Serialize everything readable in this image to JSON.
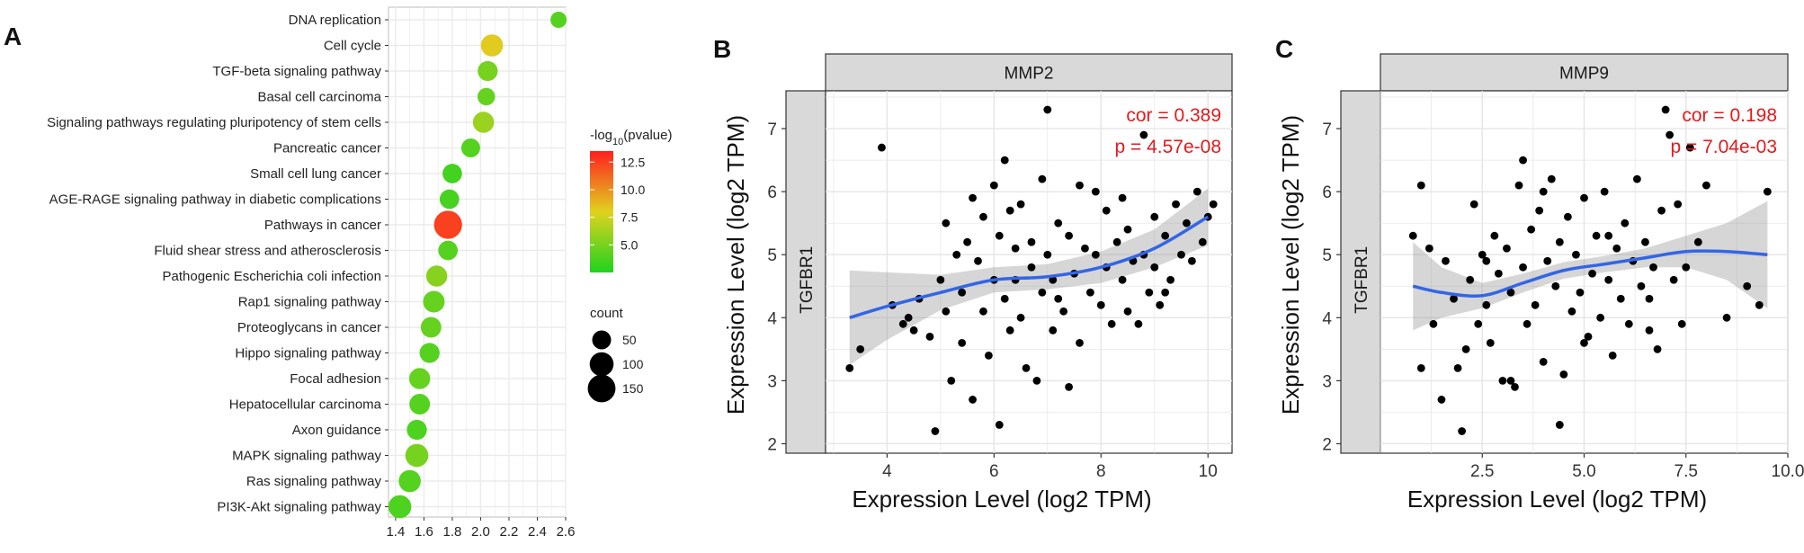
{
  "panel_labels": [
    "A",
    "B",
    "C"
  ],
  "chart_data": [
    {
      "type": "scatter",
      "id": "A",
      "categories": [
        "DNA replication",
        "Cell cycle",
        "TGF-beta signaling pathway",
        "Basal cell carcinoma",
        "Signaling pathways regulating pluripotency of stem cells",
        "Pancreatic cancer",
        "Small cell lung cancer",
        "AGE-RAGE signaling pathway in diabetic complications",
        "Pathways in cancer",
        "Fluid shear stress and atherosclerosis",
        "Pathogenic Escherichia coli infection",
        "Rap1 signaling pathway",
        "Proteoglycans in cancer",
        "Hippo signaling pathway",
        "Focal adhesion",
        "Hepatocellular carcinoma",
        "Axon guidance",
        "MAPK signaling pathway",
        "Ras signaling pathway",
        "PI3K-Akt signaling pathway"
      ],
      "x": [
        2.55,
        2.08,
        2.05,
        2.04,
        2.02,
        1.93,
        1.8,
        1.78,
        1.77,
        1.77,
        1.69,
        1.67,
        1.65,
        1.64,
        1.57,
        1.57,
        1.55,
        1.55,
        1.5,
        1.43
      ],
      "count": [
        30,
        80,
        60,
        40,
        70,
        50,
        55,
        55,
        155,
        55,
        70,
        75,
        65,
        60,
        70,
        65,
        60,
        90,
        80,
        90
      ],
      "neg_log10_pvalue": [
        4.0,
        8.2,
        5.0,
        4.5,
        6.0,
        4.0,
        3.5,
        3.6,
        12.5,
        4.0,
        5.5,
        4.5,
        4.5,
        4.0,
        4.5,
        4.0,
        3.8,
        5.0,
        4.0,
        3.8
      ],
      "xlim": [
        1.35,
        2.6
      ],
      "xticks": [
        "1.4",
        "1.6",
        "1.8",
        "2.0",
        "2.2",
        "2.4",
        "2.6"
      ],
      "color_legend": {
        "title_pre": "-log",
        "title_sub": "10",
        "title_post": "(pvalue)",
        "ticks": [
          "12.5",
          "10.0",
          "7.5",
          "5.0"
        ],
        "range": [
          2.5,
          13.5
        ],
        "colors": [
          "#1fd21f",
          "#e0d21f",
          "#ff1f1f"
        ]
      },
      "size_legend": {
        "title": "count",
        "items": [
          50,
          100,
          150
        ],
        "labels": [
          "50",
          "100",
          "150"
        ]
      },
      "grid": true
    },
    {
      "type": "scatter",
      "id": "B",
      "strip_top": "MMP2",
      "strip_side": "TGFBR1",
      "xlabel": "Expression Level (log2 TPM)",
      "ylabel": "Expression Level (log2 TPM)",
      "xlim": [
        2.85,
        10.45
      ],
      "ylim": [
        1.85,
        7.6
      ],
      "xticks": [
        4,
        6,
        8,
        10
      ],
      "xtick_labels": [
        "4",
        "6",
        "8",
        "10"
      ],
      "yticks": [
        2,
        3,
        4,
        5,
        6,
        7
      ],
      "ytick_labels": [
        "2",
        "3",
        "4",
        "5",
        "6",
        "7"
      ],
      "annotation": [
        "cor = 0.389",
        "p = 4.57e-08"
      ],
      "smooth": {
        "x": [
          3.3,
          4.0,
          5.0,
          6.0,
          7.0,
          8.0,
          9.0,
          10.0
        ],
        "y": [
          4.0,
          4.18,
          4.4,
          4.6,
          4.65,
          4.8,
          5.1,
          5.6
        ]
      },
      "smooth_ci_upper": [
        4.75,
        4.72,
        4.68,
        4.8,
        4.85,
        5.05,
        5.4,
        6.05
      ],
      "smooth_ci_lower": [
        3.25,
        3.65,
        4.12,
        4.4,
        4.45,
        4.55,
        4.8,
        5.15
      ],
      "points": [
        [
          3.3,
          3.2
        ],
        [
          3.5,
          3.5
        ],
        [
          3.9,
          6.7
        ],
        [
          4.1,
          4.2
        ],
        [
          4.3,
          3.9
        ],
        [
          4.5,
          3.8
        ],
        [
          4.6,
          4.3
        ],
        [
          4.8,
          3.7
        ],
        [
          4.9,
          2.2
        ],
        [
          5.0,
          4.6
        ],
        [
          5.1,
          5.5
        ],
        [
          5.1,
          4.1
        ],
        [
          5.2,
          3.0
        ],
        [
          5.3,
          5.0
        ],
        [
          5.4,
          4.4
        ],
        [
          5.4,
          3.6
        ],
        [
          5.5,
          5.2
        ],
        [
          5.6,
          2.7
        ],
        [
          5.7,
          4.9
        ],
        [
          5.8,
          4.1
        ],
        [
          5.8,
          5.6
        ],
        [
          5.9,
          3.4
        ],
        [
          6.0,
          6.1
        ],
        [
          6.0,
          4.6
        ],
        [
          6.1,
          5.3
        ],
        [
          6.1,
          2.3
        ],
        [
          6.2,
          6.5
        ],
        [
          6.2,
          4.3
        ],
        [
          6.3,
          3.8
        ],
        [
          6.4,
          5.1
        ],
        [
          6.4,
          4.6
        ],
        [
          6.5,
          4.0
        ],
        [
          6.5,
          5.8
        ],
        [
          6.6,
          3.2
        ],
        [
          6.7,
          4.8
        ],
        [
          6.7,
          5.2
        ],
        [
          6.8,
          3.0
        ],
        [
          6.9,
          4.4
        ],
        [
          6.9,
          6.2
        ],
        [
          7.0,
          7.3
        ],
        [
          7.0,
          5.0
        ],
        [
          7.1,
          3.8
        ],
        [
          7.1,
          4.6
        ],
        [
          7.2,
          5.5
        ],
        [
          7.3,
          4.1
        ],
        [
          7.4,
          2.9
        ],
        [
          7.4,
          5.3
        ],
        [
          7.5,
          4.7
        ],
        [
          7.6,
          3.6
        ],
        [
          7.7,
          5.1
        ],
        [
          7.8,
          4.4
        ],
        [
          7.9,
          6.0
        ],
        [
          7.9,
          5.0
        ],
        [
          8.0,
          4.2
        ],
        [
          8.1,
          5.7
        ],
        [
          8.1,
          4.8
        ],
        [
          8.2,
          3.9
        ],
        [
          8.3,
          5.2
        ],
        [
          8.4,
          4.6
        ],
        [
          8.5,
          4.1
        ],
        [
          8.5,
          5.4
        ],
        [
          8.6,
          4.9
        ],
        [
          8.7,
          3.9
        ],
        [
          8.8,
          6.9
        ],
        [
          8.8,
          5.0
        ],
        [
          8.9,
          4.4
        ],
        [
          9.0,
          5.6
        ],
        [
          9.0,
          4.8
        ],
        [
          9.1,
          4.2
        ],
        [
          9.2,
          5.3
        ],
        [
          9.3,
          4.6
        ],
        [
          9.4,
          5.8
        ],
        [
          9.5,
          5.0
        ],
        [
          9.6,
          5.5
        ],
        [
          9.7,
          4.9
        ],
        [
          9.8,
          6.0
        ],
        [
          9.9,
          5.2
        ],
        [
          10.0,
          5.6
        ],
        [
          10.1,
          5.8
        ],
        [
          4.4,
          4.0
        ],
        [
          5.6,
          5.9
        ],
        [
          6.3,
          5.7
        ],
        [
          7.2,
          4.3
        ],
        [
          7.6,
          6.1
        ],
        [
          8.4,
          5.9
        ],
        [
          9.2,
          4.4
        ]
      ],
      "grid": true
    },
    {
      "type": "scatter",
      "id": "C",
      "strip_top": "MMP9",
      "strip_side": "TGFBR1",
      "xlabel": "Expression Level (log2 TPM)",
      "ylabel": "Expression Level (log2 TPM)",
      "xlim": [
        0.0,
        10.0
      ],
      "ylim": [
        1.85,
        7.6
      ],
      "xticks": [
        2.5,
        5.0,
        7.5,
        10.0
      ],
      "xtick_labels": [
        "2.5",
        "5.0",
        "7.5",
        "10.0"
      ],
      "yticks": [
        2,
        3,
        4,
        5,
        6,
        7
      ],
      "ytick_labels": [
        "2",
        "3",
        "4",
        "5",
        "6",
        "7"
      ],
      "annotation": [
        "cor = 0.198",
        "p = 7.04e-03"
      ],
      "smooth": {
        "x": [
          0.8,
          1.5,
          2.5,
          3.5,
          4.5,
          5.5,
          6.5,
          7.5,
          8.5,
          9.5
        ],
        "y": [
          4.5,
          4.4,
          4.35,
          4.55,
          4.75,
          4.85,
          4.95,
          5.05,
          5.05,
          5.0
        ]
      },
      "smooth_ci_upper": [
        5.2,
        4.8,
        4.55,
        4.7,
        4.88,
        4.98,
        5.1,
        5.3,
        5.5,
        5.85
      ],
      "smooth_ci_lower": [
        3.8,
        4.0,
        4.15,
        4.4,
        4.62,
        4.72,
        4.8,
        4.8,
        4.6,
        4.15
      ],
      "points": [
        [
          0.8,
          5.3
        ],
        [
          1.0,
          6.1
        ],
        [
          1.0,
          3.2
        ],
        [
          1.2,
          5.1
        ],
        [
          1.3,
          3.9
        ],
        [
          1.5,
          2.7
        ],
        [
          1.6,
          4.9
        ],
        [
          1.8,
          4.3
        ],
        [
          1.9,
          3.2
        ],
        [
          2.0,
          2.2
        ],
        [
          2.1,
          3.5
        ],
        [
          2.2,
          4.6
        ],
        [
          2.3,
          5.8
        ],
        [
          2.4,
          3.9
        ],
        [
          2.5,
          5.0
        ],
        [
          2.6,
          4.2
        ],
        [
          2.7,
          3.6
        ],
        [
          2.8,
          5.3
        ],
        [
          2.9,
          4.7
        ],
        [
          3.0,
          3.0
        ],
        [
          3.1,
          5.1
        ],
        [
          3.2,
          4.4
        ],
        [
          3.3,
          2.9
        ],
        [
          3.4,
          6.1
        ],
        [
          3.5,
          4.8
        ],
        [
          3.5,
          6.5
        ],
        [
          3.6,
          3.9
        ],
        [
          3.7,
          5.4
        ],
        [
          3.8,
          4.2
        ],
        [
          3.9,
          5.7
        ],
        [
          4.0,
          3.3
        ],
        [
          4.1,
          4.9
        ],
        [
          4.2,
          6.2
        ],
        [
          4.3,
          4.5
        ],
        [
          4.4,
          5.2
        ],
        [
          4.4,
          2.3
        ],
        [
          4.5,
          3.1
        ],
        [
          4.6,
          5.6
        ],
        [
          4.7,
          4.1
        ],
        [
          4.8,
          5.0
        ],
        [
          4.9,
          4.4
        ],
        [
          5.0,
          5.9
        ],
        [
          5.1,
          3.7
        ],
        [
          5.2,
          4.7
        ],
        [
          5.3,
          5.3
        ],
        [
          5.4,
          4.0
        ],
        [
          5.5,
          6.0
        ],
        [
          5.6,
          4.6
        ],
        [
          5.7,
          3.4
        ],
        [
          5.8,
          5.1
        ],
        [
          5.9,
          4.3
        ],
        [
          6.0,
          5.5
        ],
        [
          6.1,
          3.9
        ],
        [
          6.2,
          4.9
        ],
        [
          6.3,
          6.2
        ],
        [
          6.4,
          4.5
        ],
        [
          6.5,
          5.2
        ],
        [
          6.6,
          3.8
        ],
        [
          6.7,
          4.8
        ],
        [
          6.8,
          3.5
        ],
        [
          6.9,
          5.7
        ],
        [
          7.0,
          7.3
        ],
        [
          7.1,
          6.9
        ],
        [
          7.2,
          4.6
        ],
        [
          7.3,
          5.8
        ],
        [
          7.4,
          3.9
        ],
        [
          7.5,
          4.8
        ],
        [
          7.6,
          6.7
        ],
        [
          7.8,
          5.2
        ],
        [
          8.0,
          6.1
        ],
        [
          8.5,
          4.0
        ],
        [
          9.0,
          4.5
        ],
        [
          9.3,
          4.2
        ],
        [
          9.5,
          6.0
        ],
        [
          3.2,
          3.0
        ],
        [
          4.0,
          6.0
        ],
        [
          5.6,
          5.3
        ],
        [
          6.6,
          4.3
        ],
        [
          2.6,
          4.9
        ],
        [
          5.0,
          3.6
        ]
      ],
      "grid": true
    }
  ]
}
